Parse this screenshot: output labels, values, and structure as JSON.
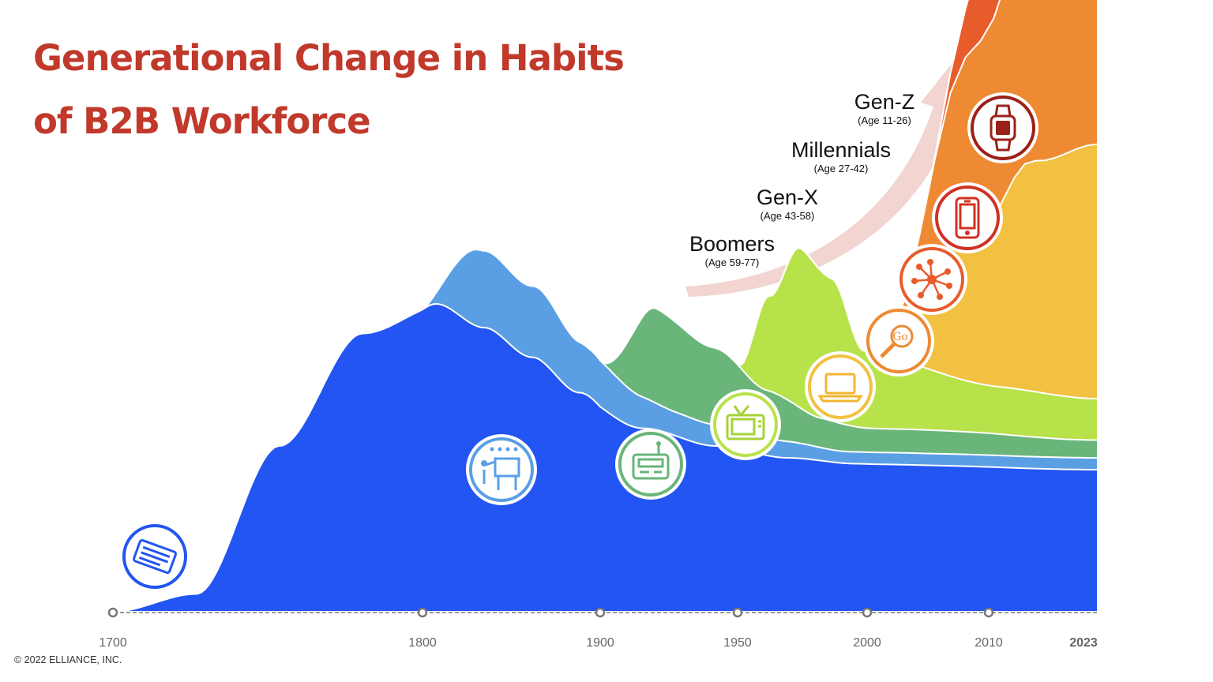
{
  "colors": {
    "title": "#C0392B",
    "axis_label": "#666666",
    "arrow": "#F2D4D0"
  },
  "title": {
    "line1": "Generational Change in Habits",
    "line2": "of B2B Workforce"
  },
  "footer": "© 2022 ELLIANCE, INC.",
  "chart_data": {
    "type": "area",
    "title": "Generational Change in Habits of B2B Workforce",
    "x_ticks": [
      "1700",
      "1800",
      "1900",
      "1950",
      "2000",
      "2010",
      "2023"
    ],
    "xlim": [
      1700,
      2023
    ],
    "series": [
      {
        "name": "Print / Newspaper",
        "icon": "newspaper-icon",
        "color": "#2255F2",
        "start_year": 1700,
        "y": [
          0,
          3,
          28,
          47,
          52,
          48,
          43,
          37,
          31,
          28,
          26,
          25,
          24
        ]
      },
      {
        "name": "Presentation / Board",
        "icon": "presentation-board-icon",
        "color": "#5A9FE4",
        "start_year": 1800,
        "y": [
          0,
          13,
          12,
          8,
          4,
          3,
          2,
          2
        ]
      },
      {
        "name": "Radio",
        "icon": "radio-icon",
        "color": "#69B57A",
        "start_year": 1900,
        "y": [
          0,
          16,
          13,
          8,
          5,
          4,
          3
        ]
      },
      {
        "name": "Television",
        "icon": "tv-icon",
        "color": "#B8E24A",
        "start_year": 1950,
        "y": [
          0,
          16,
          27,
          24,
          13,
          8,
          7
        ]
      },
      {
        "name": "Computer",
        "icon": "laptop-icon",
        "color": "#F2C142",
        "start_year": 2000,
        "y": [
          0,
          23,
          39,
          43
        ]
      },
      {
        "name": "Search Engine",
        "icon": "search-engine-icon",
        "color": "#EE8A33",
        "start_year": 2002,
        "y": [
          0,
          33,
          40,
          36
        ]
      },
      {
        "name": "Social Network",
        "icon": "social-network-icon",
        "color": "#E85C2C",
        "start_year": 2005,
        "y": [
          0,
          30,
          35
        ]
      },
      {
        "name": "Mobile",
        "icon": "mobile-phone-icon",
        "color": "#D03222",
        "start_year": 2008,
        "y": [
          0,
          35,
          40
        ]
      },
      {
        "name": "Wearables",
        "icon": "smartwatch-icon",
        "color": "#9B2118",
        "start_year": 2011,
        "y": [
          0,
          60,
          100
        ]
      }
    ],
    "generations": [
      {
        "name": "Gen-Z",
        "ages": "(Age 11-26)"
      },
      {
        "name": "Millennials",
        "ages": "(Age 27-42)"
      },
      {
        "name": "Gen-X",
        "ages": "(Age 43-58)"
      },
      {
        "name": "Boomers",
        "ages": "(Age 59-77)"
      }
    ]
  }
}
